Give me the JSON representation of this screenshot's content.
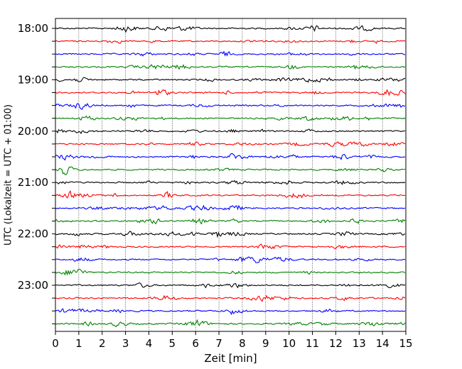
{
  "chart_data": {
    "type": "line",
    "title": "",
    "xlabel": "Zeit  [min]",
    "ylabel": "UTC (Lokalzeit = UTC + 01:00)",
    "xlim": [
      0,
      15
    ],
    "x_ticks": [
      "0",
      "1",
      "2",
      "3",
      "4",
      "5",
      "6",
      "7",
      "8",
      "9",
      "10",
      "11",
      "12",
      "13",
      "14",
      "15"
    ],
    "y_tick_labels": [
      "18:00",
      "19:00",
      "20:00",
      "21:00",
      "22:00",
      "23:00"
    ],
    "traces_per_hour": 4,
    "minutes_per_trace": 15,
    "trace_colors": [
      "#000000",
      "#ff0000",
      "#0000ff",
      "#008000"
    ],
    "trace_start_times": [
      "18:00",
      "18:15",
      "18:30",
      "18:45",
      "19:00",
      "19:15",
      "19:30",
      "19:45",
      "20:00",
      "20:15",
      "20:30",
      "20:45",
      "21:00",
      "21:15",
      "21:30",
      "21:45",
      "22:00",
      "22:15",
      "22:30",
      "22:45",
      "23:00",
      "23:15",
      "23:30",
      "23:45"
    ],
    "grid": "vertical dotted at each minute",
    "legend": "none"
  }
}
